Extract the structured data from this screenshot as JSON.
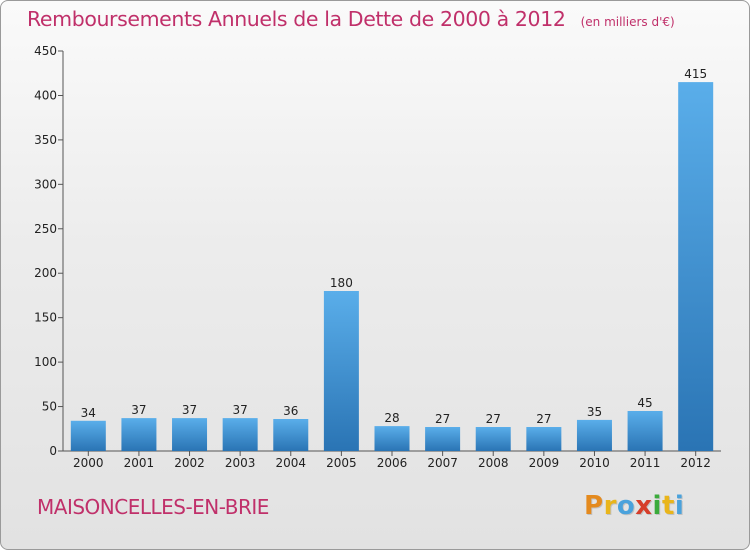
{
  "header": {
    "title": "Remboursements Annuels de la Dette de 2000 à 2012",
    "unit": "(en milliers d'€)"
  },
  "footer": {
    "commune": "MAISONCELLES-EN-BRIE",
    "logo_letters": [
      "P",
      "r",
      "o",
      "x",
      "i",
      "t",
      "i"
    ],
    "logo_colors": [
      "#e48a1e",
      "#e9b51b",
      "#4aa2dc",
      "#d63e2a",
      "#3bab3b",
      "#e9b51b",
      "#4aa2dc"
    ]
  },
  "colors": {
    "bar_top": "#5aaeea",
    "bar_bottom": "#2a74b4",
    "axis": "#555555",
    "text": "#222222",
    "title": "#c0306a"
  },
  "chart_data": {
    "type": "bar",
    "title": "Remboursements Annuels de la Dette de 2000 à 2012",
    "xlabel": "",
    "ylabel": "",
    "categories": [
      "2000",
      "2001",
      "2002",
      "2003",
      "2004",
      "2005",
      "2006",
      "2007",
      "2008",
      "2009",
      "2010",
      "2011",
      "2012"
    ],
    "values": [
      34,
      37,
      37,
      37,
      36,
      180,
      28,
      27,
      27,
      27,
      35,
      45,
      415
    ],
    "ylim": [
      0,
      450
    ],
    "yticks": [
      0,
      50,
      100,
      150,
      200,
      250,
      300,
      350,
      400,
      450
    ],
    "grid": false,
    "legend": "none"
  }
}
